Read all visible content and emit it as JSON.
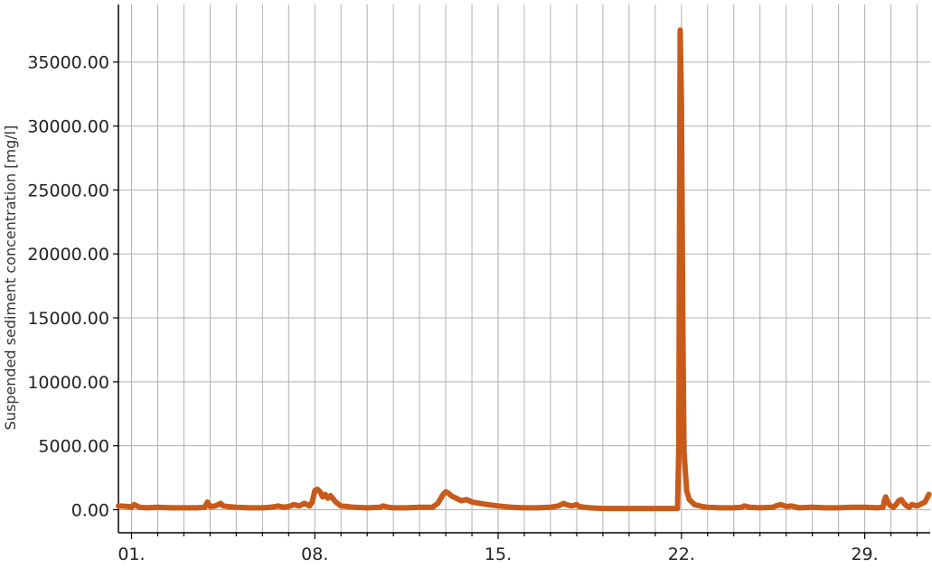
{
  "chart_data": {
    "type": "line",
    "ylabel": "Suspended sediment concentration [mg/l]",
    "xlabel": "",
    "title": "",
    "x_unit": "day of month",
    "xlim": [
      0.5,
      31.5
    ],
    "ylim": [
      -1800,
      39500
    ],
    "x_major_ticks": [
      1,
      8,
      15,
      22,
      29
    ],
    "x_tick_labels": [
      "01.",
      "08.",
      "15.",
      "22.",
      "29."
    ],
    "x_minor_ticks": [
      2,
      3,
      4,
      5,
      6,
      7,
      9,
      10,
      11,
      12,
      13,
      14,
      16,
      17,
      18,
      19,
      20,
      21,
      23,
      24,
      25,
      26,
      27,
      28,
      30,
      31
    ],
    "y_ticks": [
      0,
      5000,
      10000,
      15000,
      20000,
      25000,
      30000,
      35000
    ],
    "y_tick_labels": [
      "0.00",
      "5000.00",
      "10000.00",
      "15000.00",
      "20000.00",
      "25000.00",
      "30000.00",
      "35000.00"
    ],
    "grid": true,
    "series_color": "#c85a1a",
    "series": [
      {
        "x": [
          0.5,
          0.9,
          1.0,
          1.1,
          1.3,
          1.6,
          2.0,
          2.5,
          3.0,
          3.5,
          3.8,
          3.9,
          4.0,
          4.2,
          4.4,
          4.5,
          4.7,
          5.0,
          5.5,
          6.0,
          6.3,
          6.5,
          6.6,
          6.8,
          7.0,
          7.2,
          7.4,
          7.6,
          7.8,
          7.9,
          8.0,
          8.1,
          8.2,
          8.3,
          8.4,
          8.5,
          8.6,
          8.8,
          9.0,
          9.5,
          10.0,
          10.5,
          10.6,
          10.8,
          11.0,
          11.5,
          12.0,
          12.5,
          12.7,
          12.9,
          13.0,
          13.1,
          13.2,
          13.4,
          13.6,
          13.8,
          14.0,
          14.3,
          14.6,
          15.0,
          15.5,
          16.0,
          16.5,
          17.0,
          17.3,
          17.5,
          17.6,
          17.8,
          18.0,
          18.1,
          18.3,
          18.5,
          19.0,
          19.5,
          20.0,
          20.5,
          21.0,
          21.5,
          21.85,
          21.9,
          21.95,
          22.0,
          22.05,
          22.1,
          22.2,
          22.3,
          22.5,
          22.8,
          23.0,
          23.5,
          24.0,
          24.3,
          24.4,
          24.6,
          25.0,
          25.5,
          25.6,
          25.8,
          26.0,
          26.2,
          26.5,
          27.0,
          27.5,
          28.0,
          28.5,
          29.0,
          29.5,
          29.7,
          29.75,
          29.8,
          29.9,
          30.0,
          30.1,
          30.2,
          30.3,
          30.4,
          30.5,
          30.6,
          30.7,
          30.8,
          31.0,
          31.3,
          31.45
        ],
        "values": [
          300,
          250,
          200,
          400,
          200,
          150,
          200,
          150,
          150,
          150,
          200,
          600,
          250,
          300,
          500,
          300,
          250,
          200,
          150,
          150,
          200,
          250,
          300,
          200,
          250,
          400,
          300,
          500,
          300,
          600,
          1500,
          1600,
          1400,
          1000,
          1200,
          900,
          1100,
          600,
          300,
          200,
          150,
          200,
          300,
          200,
          150,
          150,
          200,
          200,
          500,
          1200,
          1400,
          1300,
          1100,
          900,
          700,
          800,
          600,
          500,
          400,
          300,
          200,
          150,
          150,
          200,
          300,
          500,
          400,
          300,
          400,
          250,
          200,
          150,
          100,
          100,
          100,
          100,
          100,
          100,
          100,
          5000,
          37500,
          32000,
          15000,
          4500,
          1500,
          800,
          400,
          250,
          200,
          150,
          150,
          200,
          300,
          200,
          150,
          200,
          300,
          400,
          250,
          300,
          150,
          200,
          150,
          150,
          200,
          200,
          150,
          200,
          700,
          1000,
          500,
          300,
          200,
          400,
          700,
          800,
          500,
          300,
          200,
          400,
          300,
          600,
          1200
        ]
      }
    ]
  }
}
